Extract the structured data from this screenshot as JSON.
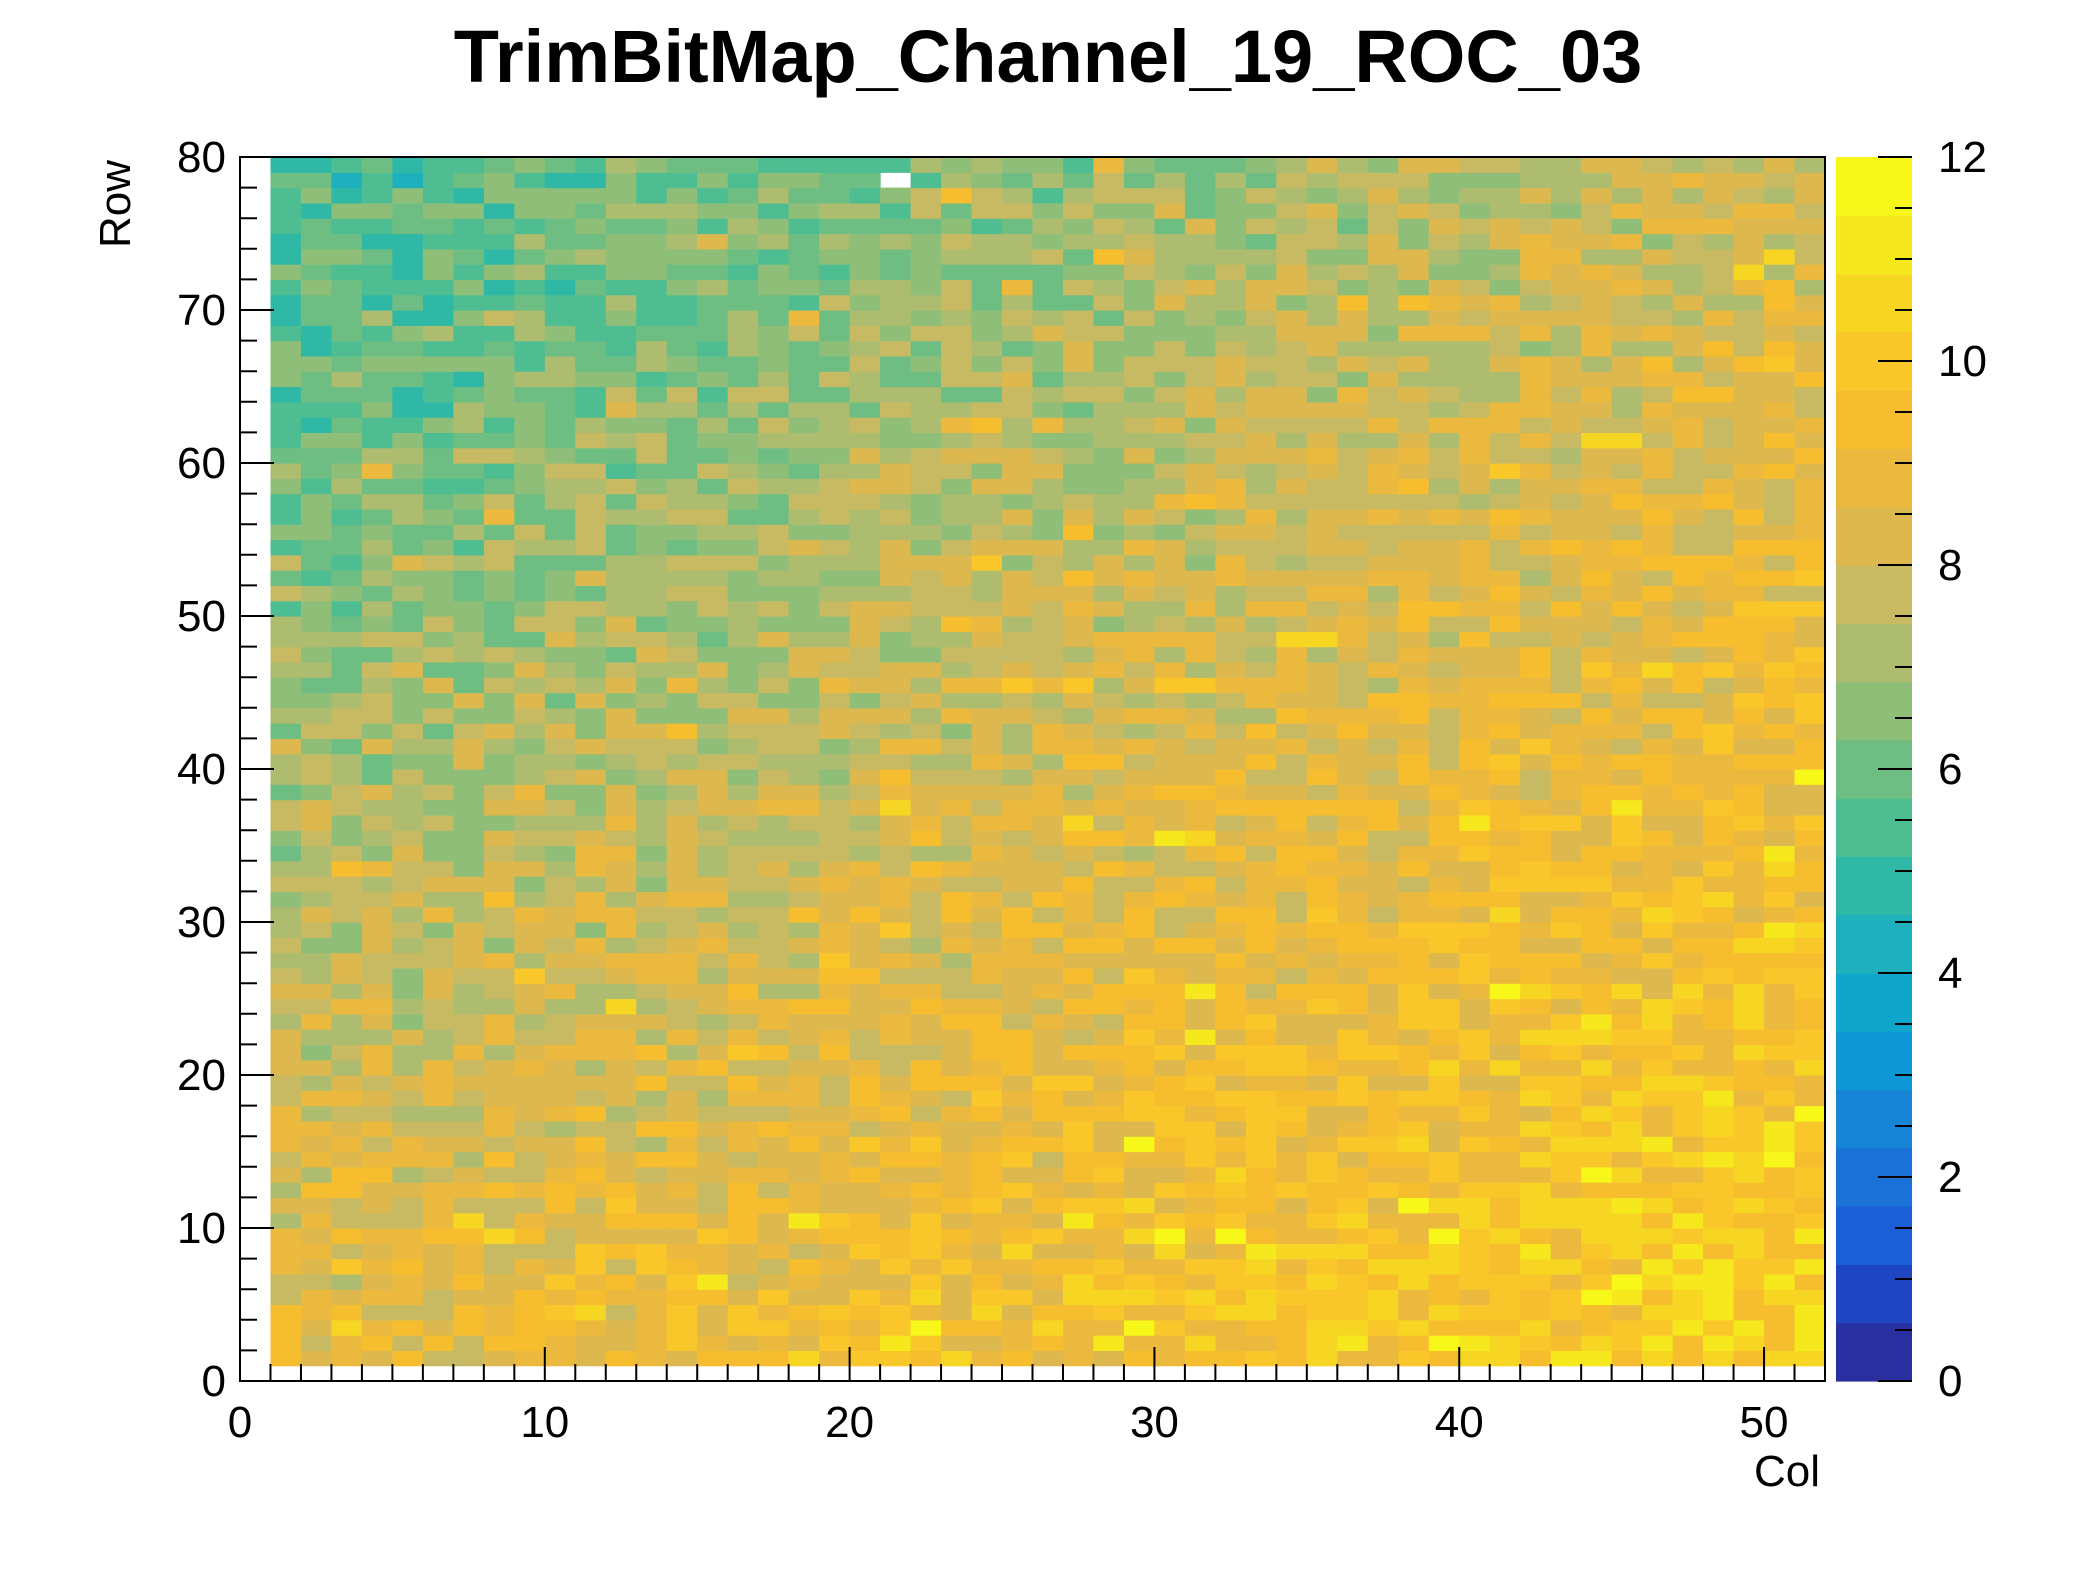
{
  "chart_data": {
    "type": "heatmap",
    "title": "TrimBitMap_Channel_19_ROC_03",
    "xlabel": "Col",
    "ylabel": "Row",
    "xlim": [
      0,
      52
    ],
    "ylim": [
      0,
      80
    ],
    "x_ticks": [
      "0",
      "10",
      "20",
      "30",
      "40",
      "50"
    ],
    "y_ticks": [
      "0",
      "10",
      "20",
      "30",
      "40",
      "50",
      "60",
      "70",
      "80"
    ],
    "colorbar": {
      "range": [
        0,
        12
      ],
      "ticks": [
        "0",
        "2",
        "4",
        "6",
        "8",
        "10",
        "12"
      ],
      "palette": [
        "#2a2f9f",
        "#1f45c2",
        "#1b5fd6",
        "#1a72d8",
        "#1784d6",
        "#0e97d4",
        "#10a6cc",
        "#1eb1bd",
        "#2fb8a6",
        "#4fbd92",
        "#6ebe83",
        "#8fbe78",
        "#aebc6f",
        "#c8ba62",
        "#dcb84f",
        "#ecb93f",
        "#f6be2f",
        "#fac72a",
        "#f7d623",
        "#f5e91e",
        "#f7f71a"
      ]
    },
    "grid": false,
    "cell_count": {
      "cols": 52,
      "rows": 80
    },
    "description": "Per-pixel trim bit values; ~6 in upper-left blue region rising to ~10 in lower-right yellow region; one empty pixel near col 21, row 79"
  }
}
